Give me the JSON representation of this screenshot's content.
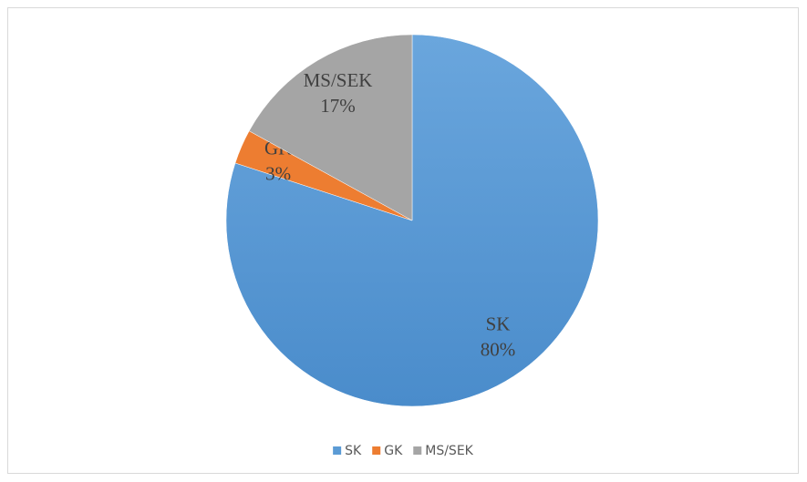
{
  "chart_data": {
    "type": "pie",
    "categories": [
      "SK",
      "GK",
      "MS/SEK"
    ],
    "values": [
      80,
      3,
      17
    ],
    "value_labels": [
      "80%",
      "3%",
      "17%"
    ],
    "colors": [
      "#5b9bd5",
      "#ed7d31",
      "#a5a5a5"
    ],
    "legend": "bottom"
  }
}
